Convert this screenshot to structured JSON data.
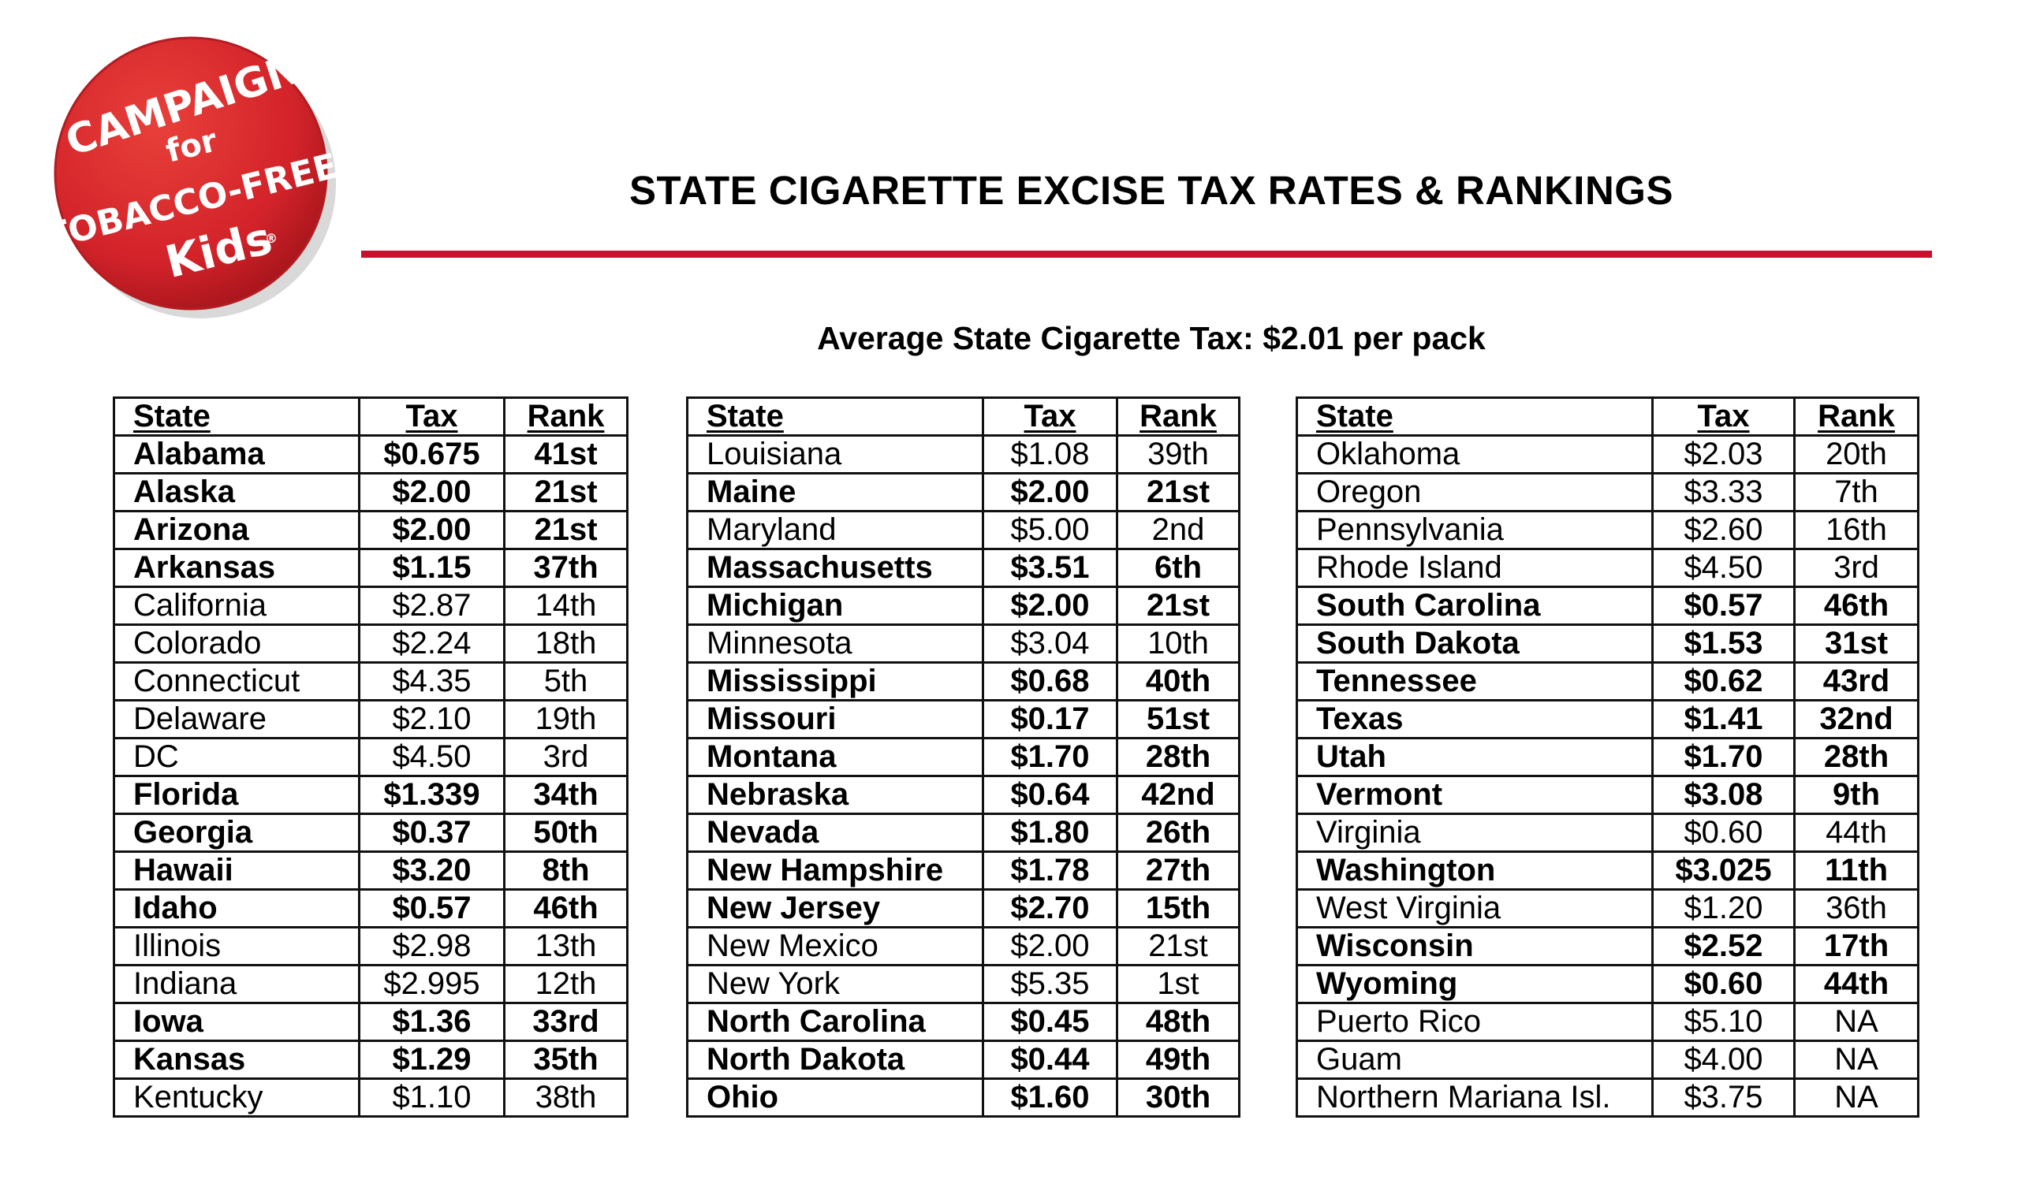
{
  "logo": {
    "line1": "CAMPAIGN",
    "line2": "for",
    "line3": "TOBACCO-FREE",
    "line4": "Kids",
    "reg": "®",
    "color": "#d3232a"
  },
  "title": "STATE CIGARETTE EXCISE TAX RATES & RANKINGS",
  "subtitle": "Average State Cigarette Tax:  $2.01 per pack",
  "columns": {
    "state": "State",
    "tax": "Tax",
    "rank": "Rank"
  },
  "tables": [
    [
      {
        "state": "Alabama",
        "tax": "$0.675",
        "rank": "41st",
        "bold": true
      },
      {
        "state": "Alaska",
        "tax": "$2.00",
        "rank": "21st",
        "bold": true
      },
      {
        "state": "Arizona",
        "tax": "$2.00",
        "rank": "21st",
        "bold": true
      },
      {
        "state": "Arkansas",
        "tax": "$1.15",
        "rank": "37th",
        "bold": true
      },
      {
        "state": "California",
        "tax": "$2.87",
        "rank": "14th",
        "bold": false
      },
      {
        "state": "Colorado",
        "tax": "$2.24",
        "rank": "18th",
        "bold": false
      },
      {
        "state": "Connecticut",
        "tax": "$4.35",
        "rank": "5th",
        "bold": false
      },
      {
        "state": "Delaware",
        "tax": "$2.10",
        "rank": "19th",
        "bold": false
      },
      {
        "state": "DC",
        "tax": "$4.50",
        "rank": "3rd",
        "bold": false
      },
      {
        "state": "Florida",
        "tax": "$1.339",
        "rank": "34th",
        "bold": true
      },
      {
        "state": "Georgia",
        "tax": "$0.37",
        "rank": "50th",
        "bold": true
      },
      {
        "state": "Hawaii",
        "tax": "$3.20",
        "rank": "8th",
        "bold": true
      },
      {
        "state": "Idaho",
        "tax": "$0.57",
        "rank": "46th",
        "bold": true
      },
      {
        "state": "Illinois",
        "tax": "$2.98",
        "rank": "13th",
        "bold": false
      },
      {
        "state": "Indiana",
        "tax": "$2.995",
        "rank": "12th",
        "bold": false
      },
      {
        "state": "Iowa",
        "tax": "$1.36",
        "rank": "33rd",
        "bold": true
      },
      {
        "state": "Kansas",
        "tax": "$1.29",
        "rank": "35th",
        "bold": true
      },
      {
        "state": "Kentucky",
        "tax": "$1.10",
        "rank": "38th",
        "bold": false
      }
    ],
    [
      {
        "state": "Louisiana",
        "tax": "$1.08",
        "rank": "39th",
        "bold": false
      },
      {
        "state": "Maine",
        "tax": "$2.00",
        "rank": "21st",
        "bold": true
      },
      {
        "state": "Maryland",
        "tax": "$5.00",
        "rank": "2nd",
        "bold": false
      },
      {
        "state": "Massachusetts",
        "tax": "$3.51",
        "rank": "6th",
        "bold": true
      },
      {
        "state": "Michigan",
        "tax": "$2.00",
        "rank": "21st",
        "bold": true
      },
      {
        "state": "Minnesota",
        "tax": "$3.04",
        "rank": "10th",
        "bold": false
      },
      {
        "state": "Mississippi",
        "tax": "$0.68",
        "rank": "40th",
        "bold": true
      },
      {
        "state": "Missouri",
        "tax": "$0.17",
        "rank": "51st",
        "bold": true
      },
      {
        "state": "Montana",
        "tax": "$1.70",
        "rank": "28th",
        "bold": true
      },
      {
        "state": "Nebraska",
        "tax": "$0.64",
        "rank": "42nd",
        "bold": true
      },
      {
        "state": "Nevada",
        "tax": "$1.80",
        "rank": "26th",
        "bold": true
      },
      {
        "state": "New Hampshire",
        "tax": "$1.78",
        "rank": "27th",
        "bold": true
      },
      {
        "state": "New Jersey",
        "tax": "$2.70",
        "rank": "15th",
        "bold": true
      },
      {
        "state": "New Mexico",
        "tax": "$2.00",
        "rank": "21st",
        "bold": false
      },
      {
        "state": "New York",
        "tax": "$5.35",
        "rank": "1st",
        "bold": false
      },
      {
        "state": "North Carolina",
        "tax": "$0.45",
        "rank": "48th",
        "bold": true
      },
      {
        "state": "North Dakota",
        "tax": "$0.44",
        "rank": "49th",
        "bold": true
      },
      {
        "state": "Ohio",
        "tax": "$1.60",
        "rank": "30th",
        "bold": true
      }
    ],
    [
      {
        "state": "Oklahoma",
        "tax": "$2.03",
        "rank": "20th",
        "bold": false
      },
      {
        "state": "Oregon",
        "tax": "$3.33",
        "rank": "7th",
        "bold": false
      },
      {
        "state": "Pennsylvania",
        "tax": "$2.60",
        "rank": "16th",
        "bold": false
      },
      {
        "state": "Rhode Island",
        "tax": "$4.50",
        "rank": "3rd",
        "bold": false
      },
      {
        "state": "South Carolina",
        "tax": "$0.57",
        "rank": "46th",
        "bold": true
      },
      {
        "state": "South Dakota",
        "tax": "$1.53",
        "rank": "31st",
        "bold": true
      },
      {
        "state": "Tennessee",
        "tax": "$0.62",
        "rank": "43rd",
        "bold": true
      },
      {
        "state": "Texas",
        "tax": "$1.41",
        "rank": "32nd",
        "bold": true
      },
      {
        "state": "Utah",
        "tax": "$1.70",
        "rank": "28th",
        "bold": true
      },
      {
        "state": "Vermont",
        "tax": "$3.08",
        "rank": "9th",
        "bold": true
      },
      {
        "state": "Virginia",
        "tax": "$0.60",
        "rank": "44th",
        "bold": false
      },
      {
        "state": "Washington",
        "tax": "$3.025",
        "rank": "11th",
        "bold": true
      },
      {
        "state": "West Virginia",
        "tax": "$1.20",
        "rank": "36th",
        "bold": false
      },
      {
        "state": "Wisconsin",
        "tax": "$2.52",
        "rank": "17th",
        "bold": true
      },
      {
        "state": "Wyoming",
        "tax": "$0.60",
        "rank": "44th",
        "bold": true
      },
      {
        "state": "Puerto Rico",
        "tax": "$5.10",
        "rank": "NA",
        "bold": false
      },
      {
        "state": "Guam",
        "tax": "$4.00",
        "rank": "NA",
        "bold": false
      },
      {
        "state": "Northern Mariana Isl.",
        "tax": "$3.75",
        "rank": "NA",
        "bold": false
      }
    ]
  ]
}
